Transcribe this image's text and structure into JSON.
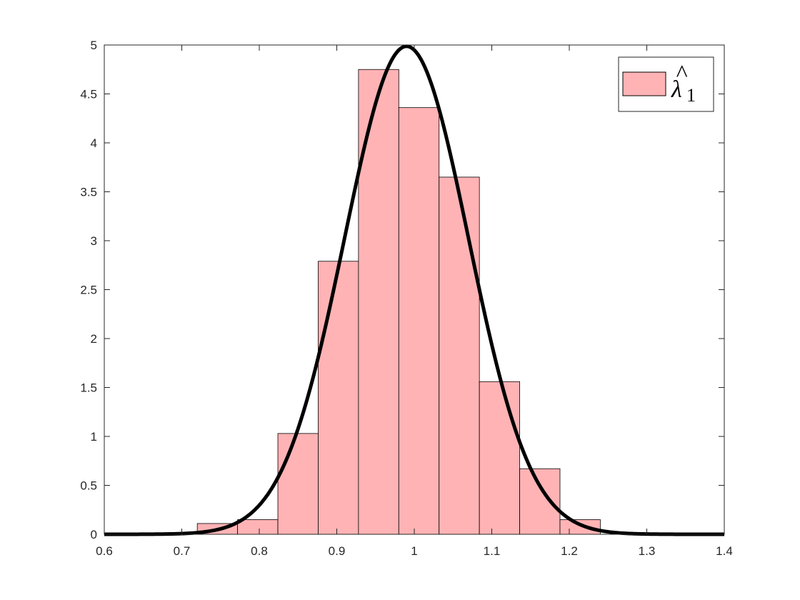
{
  "chart_data": {
    "type": "bar",
    "title": "",
    "xlabel": "",
    "ylabel": "",
    "xlim": [
      0.6,
      1.4
    ],
    "ylim": [
      0,
      5
    ],
    "grid": false,
    "legend_placement": "top-right",
    "x_ticks": [
      "0.6",
      "0.7",
      "0.8",
      "0.9",
      "1",
      "1.1",
      "1.2",
      "1.3",
      "1.4"
    ],
    "y_ticks": [
      "0",
      "0.5",
      "1",
      "1.5",
      "2",
      "2.5",
      "3",
      "3.5",
      "4",
      "4.5",
      "5"
    ],
    "histogram": {
      "bin_edges": [
        0.72,
        0.772,
        0.824,
        0.876,
        0.928,
        0.98,
        1.032,
        1.084,
        1.136,
        1.188,
        1.24
      ],
      "values": [
        0.11,
        0.15,
        1.03,
        2.79,
        4.75,
        4.36,
        3.65,
        1.56,
        0.67,
        0.15
      ],
      "fill_color": "#ffb3b5",
      "edge_color": "#000000"
    },
    "density_curve": {
      "distribution": "normal",
      "mean": 0.99,
      "std": 0.08,
      "color": "#000000"
    },
    "legend": {
      "symbol": "λ",
      "accent": "^",
      "subscript": "1"
    }
  }
}
